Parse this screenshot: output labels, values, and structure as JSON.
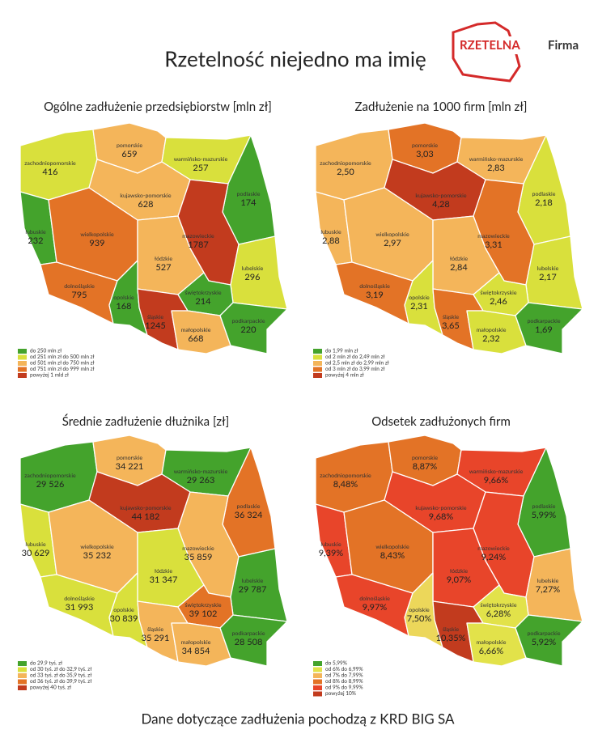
{
  "header": {
    "title": "Rzetelność niejedno ma imię",
    "logo": {
      "brand": "RZETELNA",
      "suffix": "Firma"
    }
  },
  "maps": [
    {
      "title": "Ogólne zadłużenie przedsiębiorstw [mln zł]",
      "regions": [
        {
          "name": "zachodniopomorskie",
          "value": "416",
          "color": "#d9e03c"
        },
        {
          "name": "pomorskie",
          "value": "659",
          "color": "#f4b55a"
        },
        {
          "name": "warmińsko-mazurskie",
          "value": "257",
          "color": "#d9e03c"
        },
        {
          "name": "podlaskie",
          "value": "174",
          "color": "#44a32c"
        },
        {
          "name": "kujawsko-pomorskie",
          "value": "628",
          "color": "#f4b55a"
        },
        {
          "name": "mazowieckie",
          "value": "1787",
          "color": "#c23b1e"
        },
        {
          "name": "lubuskie",
          "value": "232",
          "color": "#44a32c"
        },
        {
          "name": "wielkopolskie",
          "value": "939",
          "color": "#e37326"
        },
        {
          "name": "łódzkie",
          "value": "527",
          "color": "#f4b55a"
        },
        {
          "name": "lubelskie",
          "value": "296",
          "color": "#d9e03c"
        },
        {
          "name": "dolnośląskie",
          "value": "795",
          "color": "#e37326"
        },
        {
          "name": "opolskie",
          "value": "168",
          "color": "#44a32c"
        },
        {
          "name": "śląskie",
          "value": "1245",
          "color": "#c23b1e"
        },
        {
          "name": "świętokrzyskie",
          "value": "214",
          "color": "#44a32c"
        },
        {
          "name": "małopolskie",
          "value": "668",
          "color": "#f4b55a"
        },
        {
          "name": "podkarpackie",
          "value": "220",
          "color": "#44a32c"
        }
      ],
      "legend": [
        {
          "label": "do 250 mln zł",
          "color": "#44a32c"
        },
        {
          "label": "od 251 mln zł do 500 mln zł",
          "color": "#d9e03c"
        },
        {
          "label": "od 501 mln zł do 750 mln zł",
          "color": "#f4b55a"
        },
        {
          "label": "od 751 mln zł do 999 mln zł",
          "color": "#e37326"
        },
        {
          "label": "powyżej 1 mld zł",
          "color": "#c23b1e"
        }
      ]
    },
    {
      "title": "Zadłużenie na 1000 firm [mln zł]",
      "regions": [
        {
          "name": "zachodniopomorskie",
          "value": "2,50",
          "color": "#f4b55a"
        },
        {
          "name": "pomorskie",
          "value": "3,03",
          "color": "#e37326"
        },
        {
          "name": "warmińsko-mazurskie",
          "value": "2,83",
          "color": "#f4b55a"
        },
        {
          "name": "podlaskie",
          "value": "2,18",
          "color": "#d9e03c"
        },
        {
          "name": "kujawsko-pomorskie",
          "value": "4,28",
          "color": "#c23b1e"
        },
        {
          "name": "mazowieckie",
          "value": "3,31",
          "color": "#e37326"
        },
        {
          "name": "lubuskie",
          "value": "2,88",
          "color": "#f4b55a"
        },
        {
          "name": "wielkopolskie",
          "value": "2,97",
          "color": "#f4b55a"
        },
        {
          "name": "łódzkie",
          "value": "2,84",
          "color": "#f4b55a"
        },
        {
          "name": "lubelskie",
          "value": "2,17",
          "color": "#d9e03c"
        },
        {
          "name": "dolnośląskie",
          "value": "3,19",
          "color": "#e37326"
        },
        {
          "name": "opolskie",
          "value": "2,31",
          "color": "#d9e03c"
        },
        {
          "name": "śląskie",
          "value": "3,65",
          "color": "#e37326"
        },
        {
          "name": "świętokrzyskie",
          "value": "2,46",
          "color": "#d9e03c"
        },
        {
          "name": "małopolskie",
          "value": "2,32",
          "color": "#d9e03c"
        },
        {
          "name": "podkarpackie",
          "value": "1,69",
          "color": "#44a32c"
        }
      ],
      "legend": [
        {
          "label": "do 1,99 mln zł",
          "color": "#44a32c"
        },
        {
          "label": "od 2 mln zł do 2,49 mln zł",
          "color": "#d9e03c"
        },
        {
          "label": "od 2,5 mln zł do 2,99 mln zł",
          "color": "#f4b55a"
        },
        {
          "label": "od 3 mln zł do 3,99 mln zł",
          "color": "#e37326"
        },
        {
          "label": "powyżej 4 mln zł",
          "color": "#c23b1e"
        }
      ]
    },
    {
      "title": "Średnie zadłużenie dłużnika [zł]",
      "regions": [
        {
          "name": "zachodniopomorskie",
          "value": "29 526",
          "color": "#44a32c"
        },
        {
          "name": "pomorskie",
          "value": "34 221",
          "color": "#f4b55a"
        },
        {
          "name": "warmińsko-mazurskie",
          "value": "29 263",
          "color": "#44a32c"
        },
        {
          "name": "podlaskie",
          "value": "36 324",
          "color": "#e37326"
        },
        {
          "name": "kujawsko-pomorskie",
          "value": "44 182",
          "color": "#c23b1e"
        },
        {
          "name": "mazowieckie",
          "value": "35 859",
          "color": "#f4b55a"
        },
        {
          "name": "lubuskie",
          "value": "30 629",
          "color": "#d9e03c"
        },
        {
          "name": "wielkopolskie",
          "value": "35 232",
          "color": "#f4b55a"
        },
        {
          "name": "łódzkie",
          "value": "31 347",
          "color": "#d9e03c"
        },
        {
          "name": "lubelskie",
          "value": "29 787",
          "color": "#44a32c"
        },
        {
          "name": "dolnośląskie",
          "value": "31 993",
          "color": "#d9e03c"
        },
        {
          "name": "opolskie",
          "value": "30 839",
          "color": "#d9e03c"
        },
        {
          "name": "śląskie",
          "value": "35 291",
          "color": "#f4b55a"
        },
        {
          "name": "świętokrzyskie",
          "value": "39 102",
          "color": "#e37326"
        },
        {
          "name": "małopolskie",
          "value": "34 854",
          "color": "#f4b55a"
        },
        {
          "name": "podkarpackie",
          "value": "28 508",
          "color": "#44a32c"
        }
      ],
      "legend": [
        {
          "label": "do 29,9 tyś. zł",
          "color": "#44a32c"
        },
        {
          "label": "od 30 tyś. zł do 32,9 tyś. zł",
          "color": "#d9e03c"
        },
        {
          "label": "od 33 tyś. zł do 35,9 tyś. zł",
          "color": "#f4b55a"
        },
        {
          "label": "od 36 tyś. zł do 39,9 tyś. zł",
          "color": "#e37326"
        },
        {
          "label": "powyżej 40 tyś. zł",
          "color": "#c23b1e"
        }
      ]
    },
    {
      "title": "Odsetek zadłużonych firm",
      "regions": [
        {
          "name": "zachodniopomorskie",
          "value": "8,48%",
          "color": "#e37326"
        },
        {
          "name": "pomorskie",
          "value": "8,87%",
          "color": "#e37326"
        },
        {
          "name": "warmińsko-mazurskie",
          "value": "9,66%",
          "color": "#e8452a"
        },
        {
          "name": "podlaskie",
          "value": "5,99%",
          "color": "#44a32c"
        },
        {
          "name": "kujawsko-pomorskie",
          "value": "9,68%",
          "color": "#e8452a"
        },
        {
          "name": "mazowieckie",
          "value": "9,24%",
          "color": "#e8452a"
        },
        {
          "name": "lubuskie",
          "value": "9,39%",
          "color": "#e8452a"
        },
        {
          "name": "wielkopolskie",
          "value": "8,43%",
          "color": "#e37326"
        },
        {
          "name": "łódzkie",
          "value": "9,07%",
          "color": "#e8452a"
        },
        {
          "name": "lubelskie",
          "value": "7,27%",
          "color": "#f4b55a"
        },
        {
          "name": "dolnośląskie",
          "value": "9,97%",
          "color": "#e8452a"
        },
        {
          "name": "opolskie",
          "value": "7,50%",
          "color": "#ecd75a"
        },
        {
          "name": "śląskie",
          "value": "10,35%",
          "color": "#c23b1e"
        },
        {
          "name": "świętokrzyskie",
          "value": "6,28%",
          "color": "#e2e24a"
        },
        {
          "name": "małopolskie",
          "value": "6,66%",
          "color": "#e2e24a"
        },
        {
          "name": "podkarpackie",
          "value": "5,92%",
          "color": "#44a32c"
        }
      ],
      "legend": [
        {
          "label": "do 5,99%",
          "color": "#44a32c"
        },
        {
          "label": "od 6% do 6,99%",
          "color": "#e2e24a"
        },
        {
          "label": "od 7% do 7,99%",
          "color": "#f4b55a"
        },
        {
          "label": "od 8% do 8,99%",
          "color": "#e37326"
        },
        {
          "label": "od 9% do 9,99%",
          "color": "#e8452a"
        },
        {
          "label": "powyżej 10%",
          "color": "#c23b1e"
        }
      ]
    }
  ],
  "footer": "Dane dotyczące zadłużenia pochodzą z KRD BIG SA"
}
